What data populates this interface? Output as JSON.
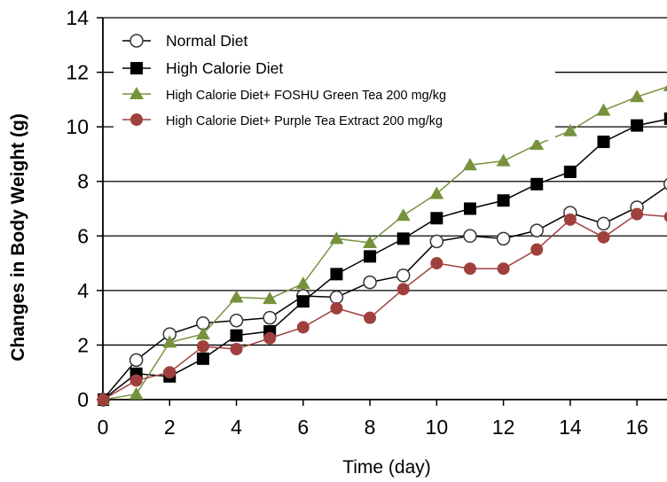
{
  "chart_data": {
    "type": "line",
    "title": "",
    "xlabel": "Time (day)",
    "ylabel": "Changes in Body Weight (g)",
    "xlim": [
      0,
      16.9
    ],
    "ylim": [
      0,
      14
    ],
    "x_ticks": [
      0,
      2,
      4,
      6,
      8,
      10,
      12,
      14,
      16
    ],
    "y_ticks": [
      0,
      2,
      4,
      6,
      8,
      10,
      12,
      14
    ],
    "grid": "horizontal",
    "legend_position": "top-left",
    "series": [
      {
        "name": "Normal Diet",
        "marker": "open-circle",
        "color": "#333333",
        "x": [
          0,
          1,
          2,
          3,
          4,
          5,
          6,
          7,
          8,
          9,
          10,
          11,
          12,
          13,
          14,
          15,
          16,
          17
        ],
        "values": [
          0,
          1.45,
          2.4,
          2.8,
          2.9,
          3.0,
          3.8,
          3.75,
          4.3,
          4.55,
          5.8,
          6.0,
          5.9,
          6.2,
          6.85,
          6.45,
          7.05,
          7.9
        ]
      },
      {
        "name": "High Calorie Diet",
        "marker": "filled-square",
        "color": "#000000",
        "x": [
          0,
          1,
          2,
          3,
          4,
          5,
          6,
          7,
          8,
          9,
          10,
          11,
          12,
          13,
          14,
          15,
          16,
          17
        ],
        "values": [
          0,
          0.95,
          0.85,
          1.5,
          2.35,
          2.5,
          3.6,
          4.6,
          5.25,
          5.9,
          6.65,
          7.0,
          7.3,
          7.9,
          8.35,
          9.45,
          10.05,
          10.3
        ]
      },
      {
        "name": "High Calorie Diet+ FOSHU Green Tea 200 mg/kg",
        "marker": "filled-triangle",
        "color": "#76923c",
        "x": [
          0,
          1,
          2,
          3,
          4,
          5,
          6,
          7,
          8,
          9,
          10,
          11,
          12,
          13,
          14,
          15,
          16,
          17
        ],
        "values": [
          0,
          0.2,
          2.1,
          2.4,
          3.75,
          3.7,
          4.25,
          5.9,
          5.75,
          6.75,
          7.55,
          8.6,
          8.75,
          9.35,
          9.85,
          10.6,
          11.1,
          11.5
        ]
      },
      {
        "name": "High Calorie Diet+ Purple Tea Extract 200 mg/kg",
        "marker": "filled-circle",
        "color": "#a0403c",
        "x": [
          0,
          1,
          2,
          3,
          4,
          5,
          6,
          7,
          8,
          9,
          10,
          11,
          12,
          13,
          14,
          15,
          16,
          17
        ],
        "values": [
          0,
          0.7,
          1.0,
          1.95,
          1.85,
          2.25,
          2.65,
          3.35,
          3.0,
          4.05,
          5.0,
          4.8,
          4.8,
          5.5,
          6.6,
          5.95,
          6.8,
          6.7
        ]
      }
    ]
  }
}
